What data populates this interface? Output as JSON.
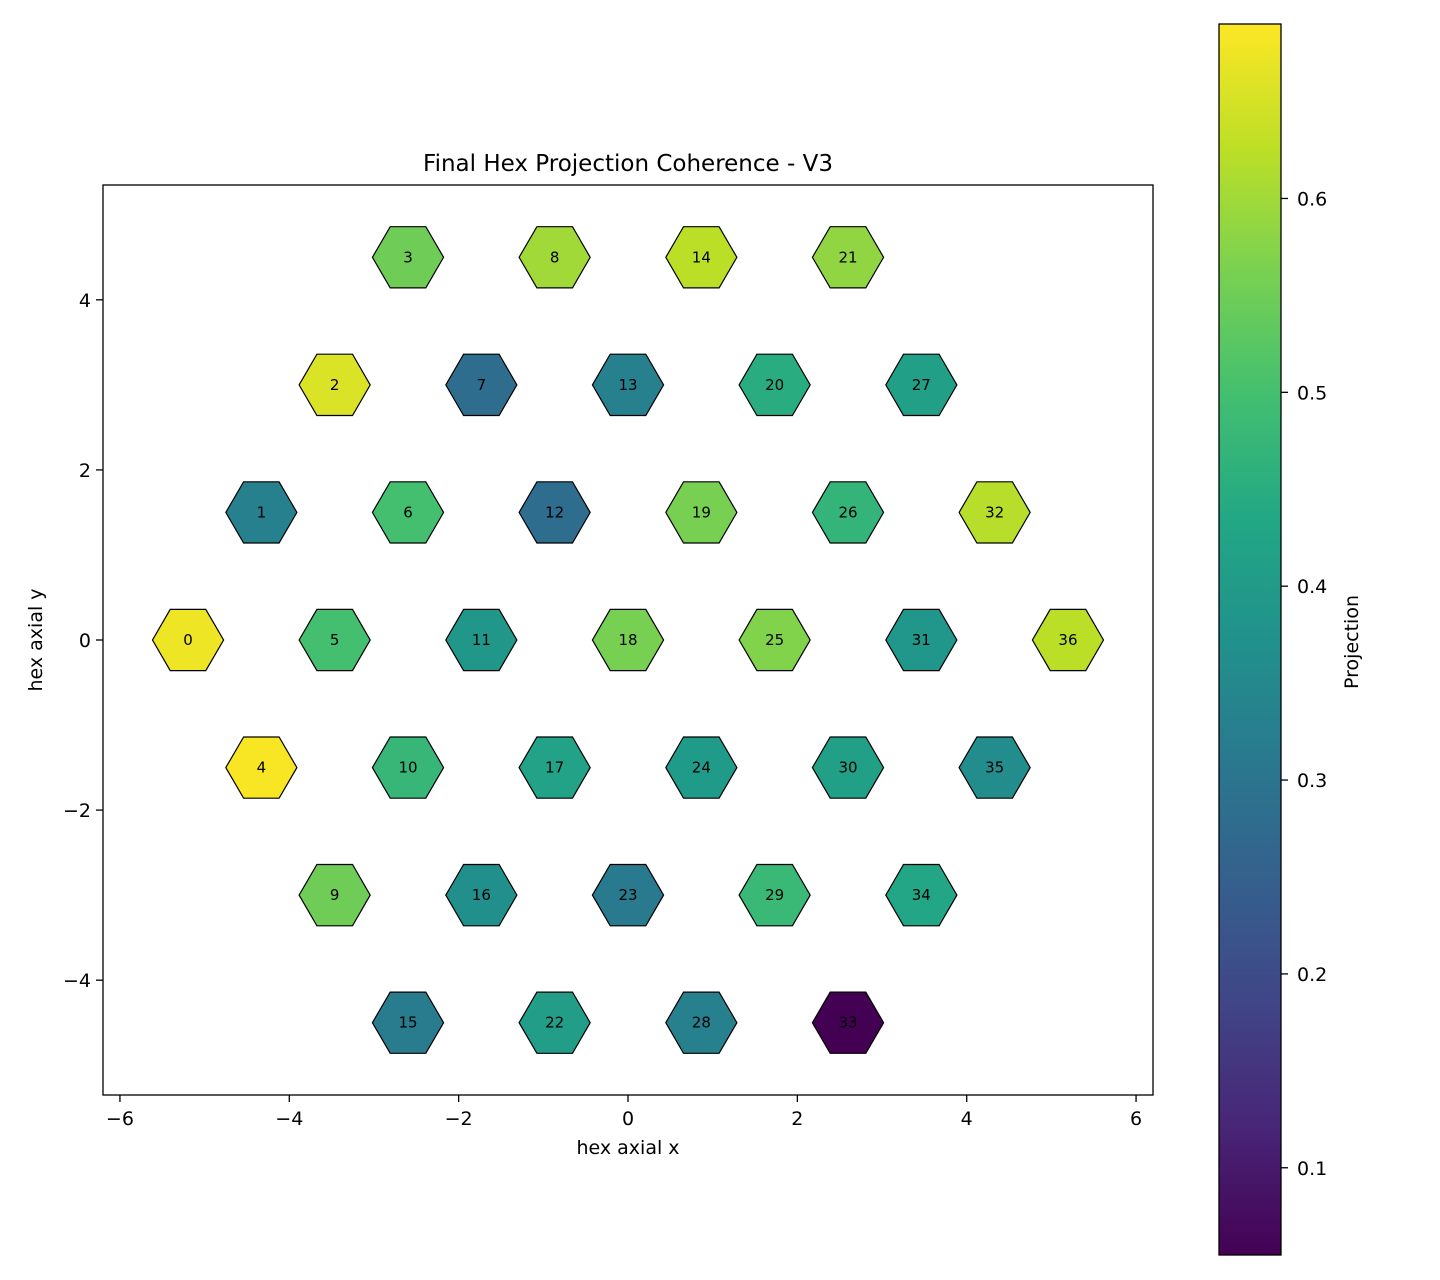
{
  "chart_data": {
    "type": "heatmap",
    "title": "Final Hex Projection Coherence - V3",
    "xlabel": "hex axial x",
    "ylabel": "hex axial y",
    "xlim": [
      -6.2,
      6.2
    ],
    "ylim": [
      -5.35,
      5.35
    ],
    "xticks": [
      -6,
      -4,
      -2,
      0,
      2,
      4,
      6
    ],
    "yticks": [
      -4,
      -2,
      0,
      2,
      4
    ],
    "colorbar": {
      "label": "Projection",
      "colormap": "viridis",
      "range": [
        0.055,
        0.69
      ],
      "ticks": [
        0.1,
        0.2,
        0.3,
        0.4,
        0.5,
        0.6
      ]
    },
    "cells": [
      {
        "id": "0",
        "x": -5.196,
        "y": 0.0,
        "value": 0.675
      },
      {
        "id": "1",
        "x": -4.33,
        "y": 1.5,
        "value": 0.33
      },
      {
        "id": "2",
        "x": -3.464,
        "y": 3.0,
        "value": 0.655
      },
      {
        "id": "3",
        "x": -2.598,
        "y": 4.5,
        "value": 0.55
      },
      {
        "id": "4",
        "x": -4.33,
        "y": -1.5,
        "value": 0.685
      },
      {
        "id": "5",
        "x": -3.464,
        "y": 0.0,
        "value": 0.5
      },
      {
        "id": "6",
        "x": -2.598,
        "y": 1.5,
        "value": 0.5
      },
      {
        "id": "7",
        "x": -1.732,
        "y": 3.0,
        "value": 0.28
      },
      {
        "id": "8",
        "x": -0.866,
        "y": 4.5,
        "value": 0.6
      },
      {
        "id": "9",
        "x": -3.464,
        "y": -3.0,
        "value": 0.55
      },
      {
        "id": "10",
        "x": -2.598,
        "y": -1.5,
        "value": 0.475
      },
      {
        "id": "11",
        "x": -1.732,
        "y": 0.0,
        "value": 0.39
      },
      {
        "id": "12",
        "x": -0.866,
        "y": 1.5,
        "value": 0.28
      },
      {
        "id": "13",
        "x": 0.0,
        "y": 3.0,
        "value": 0.33
      },
      {
        "id": "14",
        "x": 0.866,
        "y": 4.5,
        "value": 0.625
      },
      {
        "id": "15",
        "x": -2.598,
        "y": -4.5,
        "value": 0.32
      },
      {
        "id": "16",
        "x": -1.732,
        "y": -3.0,
        "value": 0.37
      },
      {
        "id": "17",
        "x": -0.866,
        "y": -1.5,
        "value": 0.42
      },
      {
        "id": "18",
        "x": 0.0,
        "y": 0.0,
        "value": 0.56
      },
      {
        "id": "19",
        "x": 0.866,
        "y": 1.5,
        "value": 0.56
      },
      {
        "id": "20",
        "x": 1.732,
        "y": 3.0,
        "value": 0.45
      },
      {
        "id": "21",
        "x": 2.598,
        "y": 4.5,
        "value": 0.585
      },
      {
        "id": "22",
        "x": -0.866,
        "y": -4.5,
        "value": 0.405
      },
      {
        "id": "23",
        "x": 0.0,
        "y": -3.0,
        "value": 0.315
      },
      {
        "id": "24",
        "x": 0.866,
        "y": -1.5,
        "value": 0.4
      },
      {
        "id": "25",
        "x": 1.732,
        "y": 0.0,
        "value": 0.57
      },
      {
        "id": "26",
        "x": 2.598,
        "y": 1.5,
        "value": 0.47
      },
      {
        "id": "27",
        "x": 3.464,
        "y": 3.0,
        "value": 0.41
      },
      {
        "id": "28",
        "x": 0.866,
        "y": -4.5,
        "value": 0.33
      },
      {
        "id": "29",
        "x": 1.732,
        "y": -3.0,
        "value": 0.48
      },
      {
        "id": "30",
        "x": 2.598,
        "y": -1.5,
        "value": 0.41
      },
      {
        "id": "31",
        "x": 3.464,
        "y": 0.0,
        "value": 0.385
      },
      {
        "id": "32",
        "x": 4.33,
        "y": 1.5,
        "value": 0.62
      },
      {
        "id": "33",
        "x": 2.598,
        "y": -4.5,
        "value": 0.055
      },
      {
        "id": "34",
        "x": 3.464,
        "y": -3.0,
        "value": 0.43
      },
      {
        "id": "35",
        "x": 4.33,
        "y": -1.5,
        "value": 0.36
      },
      {
        "id": "36",
        "x": 5.196,
        "y": 0.0,
        "value": 0.625
      }
    ]
  }
}
